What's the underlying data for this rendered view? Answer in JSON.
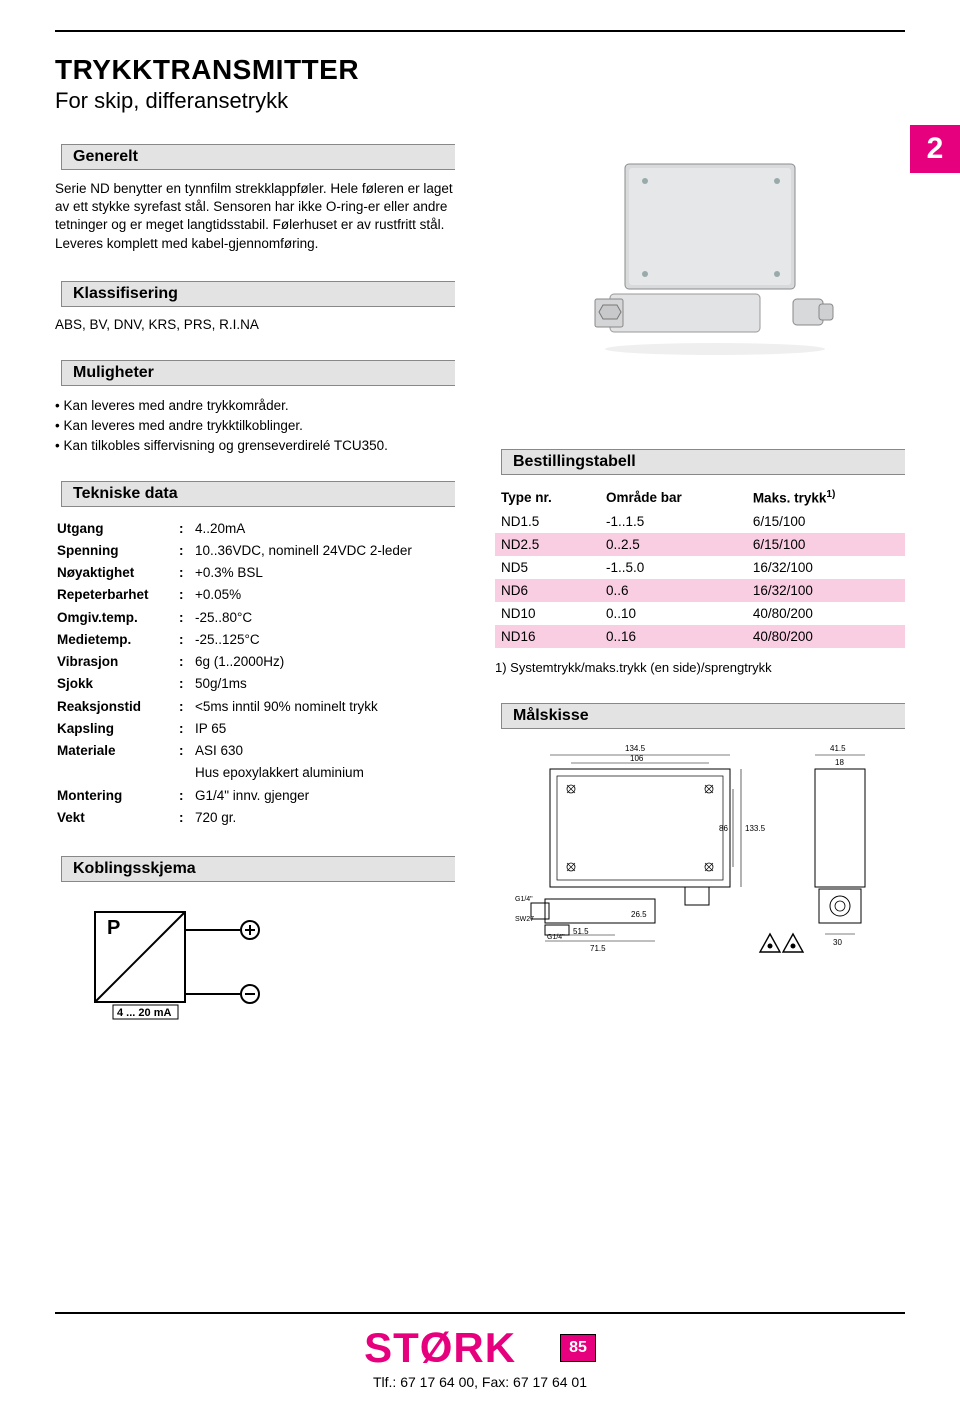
{
  "header": {
    "title": "TRYKKTRANSMITTER",
    "subtitle": "For skip, differansetrykk"
  },
  "tab": {
    "label": "2",
    "color": "#e6007e"
  },
  "generelt": {
    "heading": "Generelt",
    "body": "Serie ND benytter en tynnfilm strekklappføler. Hele føleren er laget av ett stykke syrefast stål. Sensoren har ikke O-ring-er eller andre tetninger og er meget langtidsstabil. Følerhuset er av rustfritt stål. Leveres komplett med kabel-gjennomføring."
  },
  "klassifisering": {
    "heading": "Klassifisering",
    "body": "ABS, BV, DNV, KRS, PRS, R.I.NA"
  },
  "muligheter": {
    "heading": "Muligheter",
    "items": [
      "Kan leveres med andre trykkområder.",
      "Kan leveres med andre trykktilkoblinger.",
      "Kan tilkobles siffervisning og grenseverdirelé TCU350."
    ]
  },
  "tekniske": {
    "heading": "Tekniske data",
    "rows": [
      [
        "Utgang",
        "4..20mA"
      ],
      [
        "Spenning",
        "10..36VDC, nominell 24VDC 2-leder"
      ],
      [
        "Nøyaktighet",
        "+0.3% BSL"
      ],
      [
        "Repeterbarhet",
        "+0.05%"
      ],
      [
        "Omgiv.temp.",
        "-25..80°C"
      ],
      [
        "Medietemp.",
        "-25..125°C"
      ],
      [
        "Vibrasjon",
        "6g (1..2000Hz)"
      ],
      [
        "Sjokk",
        "50g/1ms"
      ],
      [
        "Reaksjonstid",
        "<5ms inntil 90% nominelt trykk"
      ],
      [
        "Kapsling",
        "IP 65"
      ],
      [
        "Materiale",
        "ASI 630"
      ],
      [
        "",
        "Hus epoxylakkert aluminium"
      ],
      [
        "Montering",
        "G1/4\" innv. gjenger"
      ],
      [
        "Vekt",
        "720 gr."
      ]
    ]
  },
  "koblingsskjema": {
    "heading": "Koblingsskjema",
    "p_label": "P",
    "ma_label": "4 ... 20 mA"
  },
  "bestillingstabell": {
    "heading": "Bestillingstabell",
    "columns": [
      "Type nr.",
      "Område bar",
      "Maks. trykk"
    ],
    "col3_sup": "1)",
    "rows": [
      {
        "cells": [
          "ND1.5",
          "-1..1.5",
          "6/15/100"
        ],
        "pink": false
      },
      {
        "cells": [
          "ND2.5",
          "0..2.5",
          "6/15/100"
        ],
        "pink": true
      },
      {
        "cells": [
          "ND5",
          "-1..5.0",
          "16/32/100"
        ],
        "pink": false
      },
      {
        "cells": [
          "ND6",
          "0..6",
          "16/32/100"
        ],
        "pink": true
      },
      {
        "cells": [
          "ND10",
          "0..10",
          "40/80/200"
        ],
        "pink": false
      },
      {
        "cells": [
          "ND16",
          "0..16",
          "40/80/200"
        ],
        "pink": true
      }
    ],
    "footnote": "1) Systemtrykk/maks.trykk (en side)/sprengtrykk"
  },
  "malskisse": {
    "heading": "Målskisse",
    "dims": {
      "w_total": "134.5",
      "w_inner": "106",
      "side_w": "41.5",
      "side_top": "18",
      "h_right": "133.5",
      "pipe_l": "51.5",
      "base_w": "71.5",
      "pipe_y": "26.5",
      "side_bottom": "30",
      "thread": "G1/4\"",
      "hex": "SW27",
      "mid_h": "86"
    }
  },
  "footer": {
    "logo": "STØRK",
    "page": "85",
    "contact": "Tlf.: 67 17 64 00, Fax: 67 17 64 01"
  },
  "colors": {
    "accent": "#e6007e",
    "heading_bg": "#e3e3e3",
    "pink_row": "#f9cde2",
    "text": "#000000"
  }
}
